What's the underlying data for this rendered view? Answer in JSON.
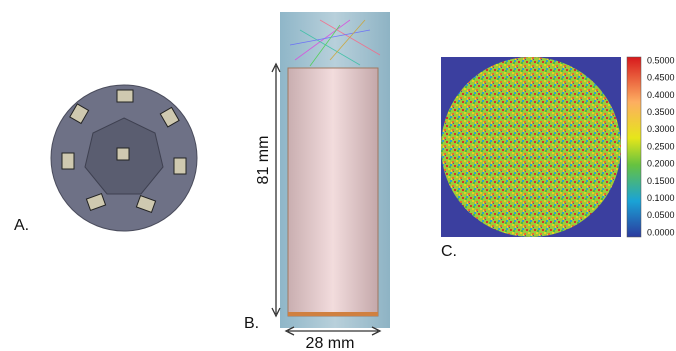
{
  "panels": {
    "a": {
      "label": "A."
    },
    "b": {
      "label": "B.",
      "height_label": "81 mm",
      "width_label": "28 mm"
    },
    "c": {
      "label": "C.",
      "colorbar": {
        "labels": [
          "0.5000",
          "0.4500",
          "0.4000",
          "0.3500",
          "0.3000",
          "0.2500",
          "0.2000",
          "0.1500",
          "0.1000",
          "0.0500",
          "0.0000"
        ]
      }
    }
  }
}
